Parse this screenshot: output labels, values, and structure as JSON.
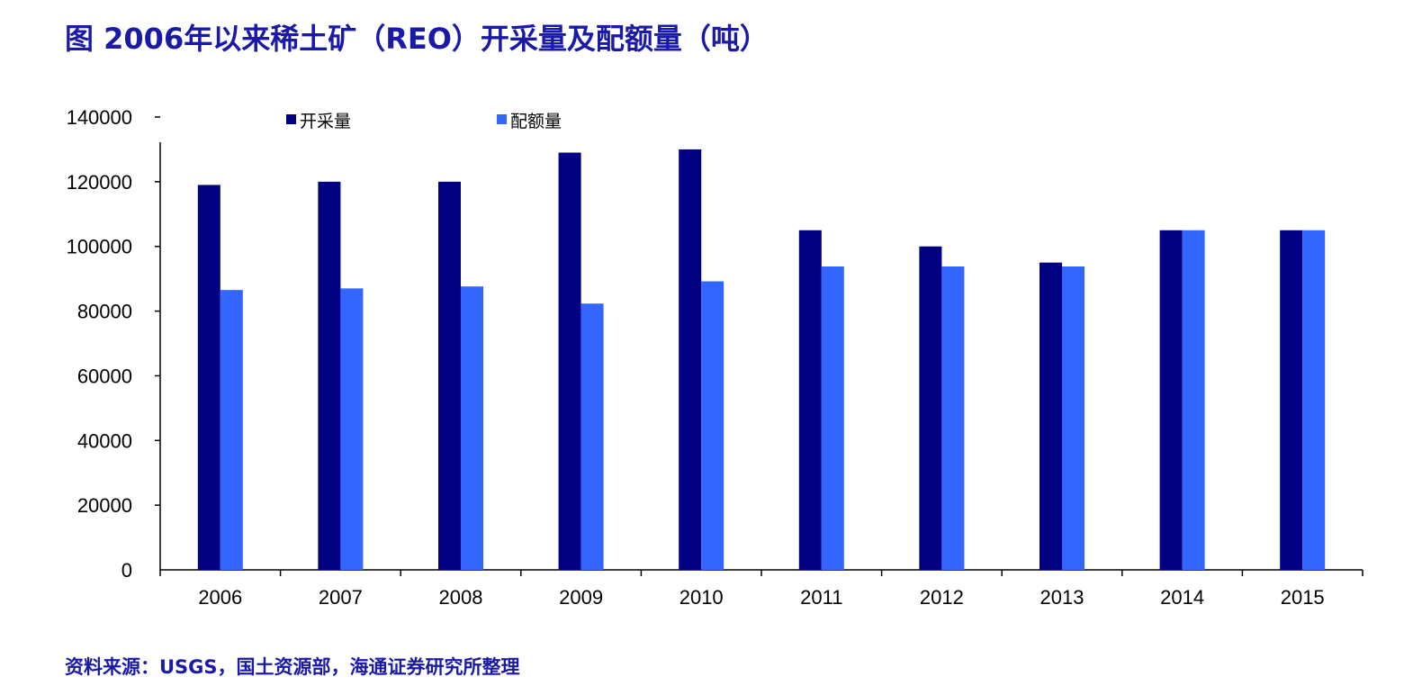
{
  "title": "图 2006年以来稀土矿（REO）开采量及配额量（吨）",
  "source": "资料来源：USGS，国土资源部，海通证券研究所整理",
  "colors": {
    "title": "#1a1aa6",
    "series_mining": "#000080",
    "series_quota": "#3366ff",
    "axis": "#000000"
  },
  "chart_data": {
    "type": "bar",
    "categories": [
      "2006",
      "2007",
      "2008",
      "2009",
      "2010",
      "2011",
      "2012",
      "2013",
      "2014",
      "2015"
    ],
    "series": [
      {
        "name": "开采量",
        "values": [
          119000,
          120000,
          120000,
          129000,
          130000,
          105000,
          100000,
          95000,
          105000,
          105000
        ]
      },
      {
        "name": "配额量",
        "values": [
          86520,
          87020,
          87620,
          82320,
          89200,
          93800,
          93800,
          93800,
          105000,
          105000
        ]
      }
    ],
    "yticks": [
      "0",
      "20000",
      "40000",
      "60000",
      "80000",
      "100000",
      "120000",
      "140000"
    ],
    "ylim": [
      0,
      140000
    ],
    "grid": false,
    "legend_position": "top"
  }
}
